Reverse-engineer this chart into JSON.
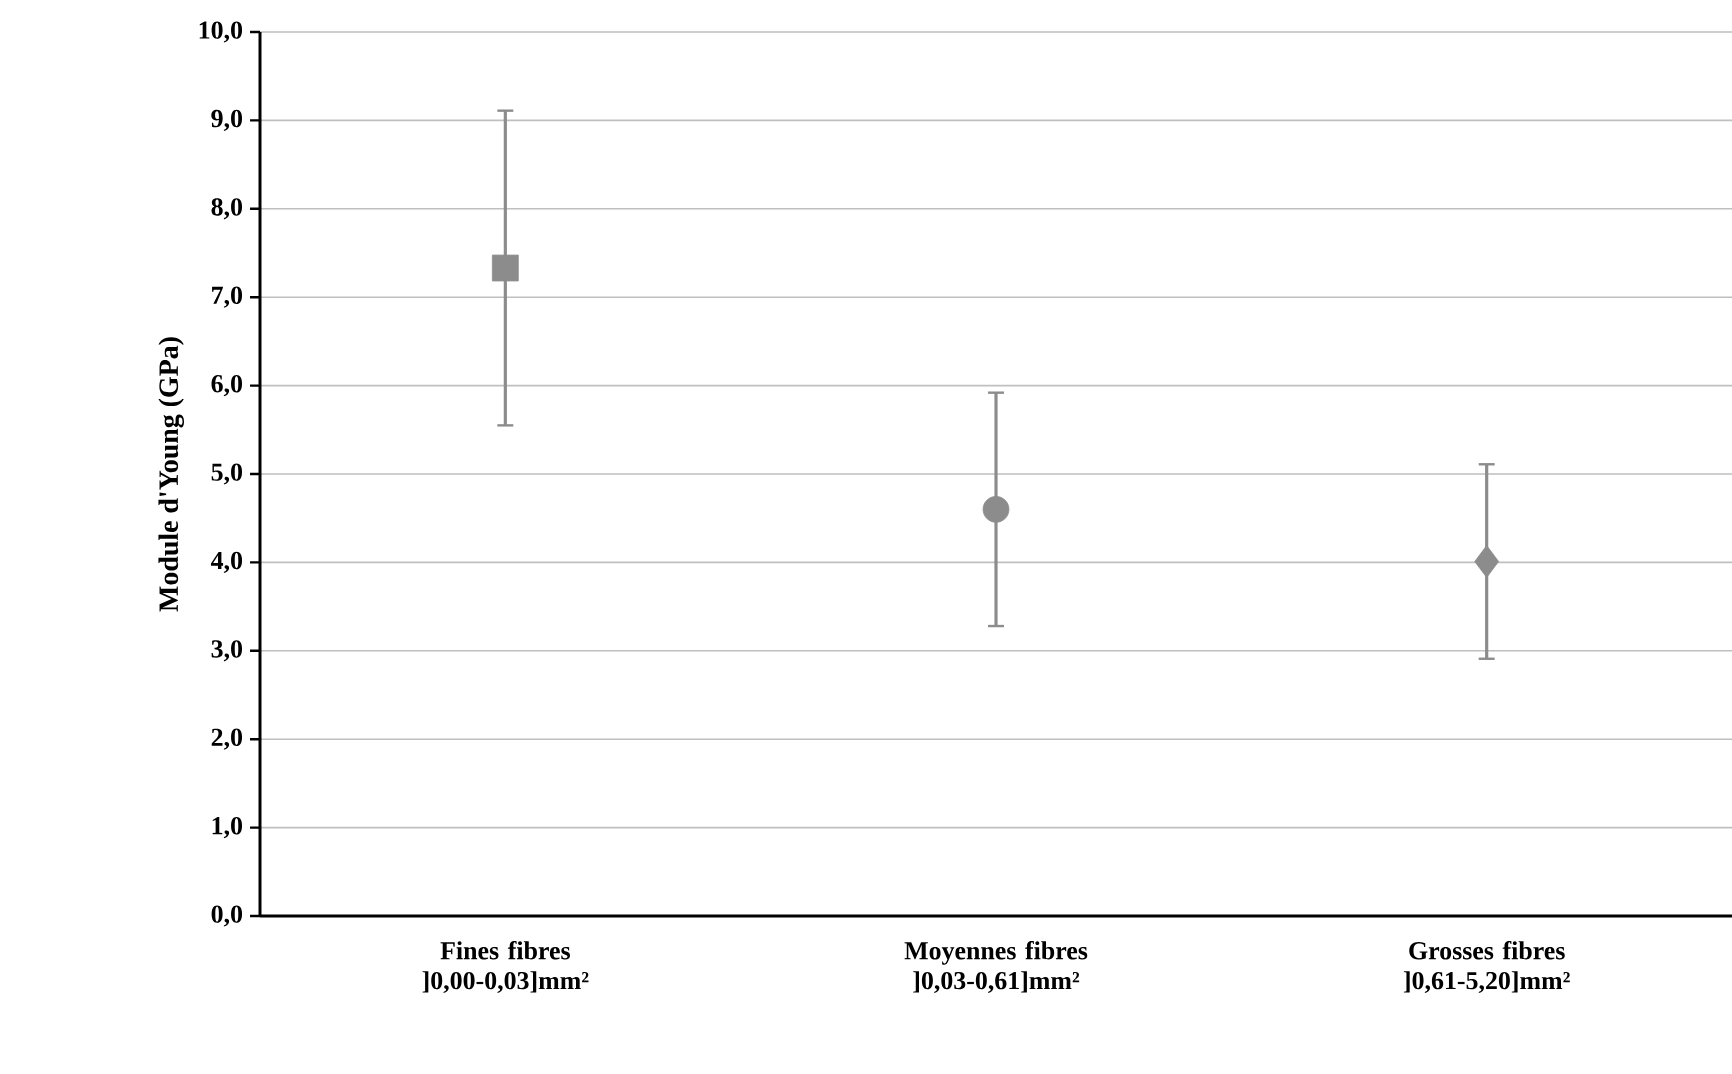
{
  "chart_data": {
    "type": "scatter",
    "ylabel": "Module d'Young (GPa)",
    "categories": [
      "Fines fibres ]0,00-0,03]mm²",
      "Moyennes fibres ]0,03-0,61]mm²",
      "Grosses fibres ]0,61-5,20]mm²"
    ],
    "series": [
      {
        "color": "#8c8c8c",
        "marker": "square",
        "values": [
          7.33,
          null,
          null
        ],
        "errors": [
          1.78,
          null,
          null
        ]
      },
      {
        "color": "#8c8c8c",
        "marker": "circle",
        "values": [
          null,
          4.6,
          null
        ],
        "errors": [
          null,
          1.32,
          null
        ]
      },
      {
        "color": "#8c8c8c",
        "marker": "diamond",
        "values": [
          null,
          null,
          4.01
        ],
        "errors": [
          null,
          null,
          1.1
        ]
      }
    ],
    "ylim": [
      0,
      10
    ],
    "yticks": [
      {
        "value": 0,
        "label": "0,0"
      },
      {
        "value": 1,
        "label": "1,0"
      },
      {
        "value": 2,
        "label": "2,0"
      },
      {
        "value": 3,
        "label": "3,0"
      },
      {
        "value": 4,
        "label": "4,0"
      },
      {
        "value": 5,
        "label": "5,0"
      },
      {
        "value": 6,
        "label": "6,0"
      },
      {
        "value": 7,
        "label": "7,0"
      },
      {
        "value": 8,
        "label": "8,0"
      },
      {
        "value": 9,
        "label": "9,0"
      },
      {
        "value": 10,
        "label": "10,0"
      }
    ],
    "grid": "y"
  }
}
